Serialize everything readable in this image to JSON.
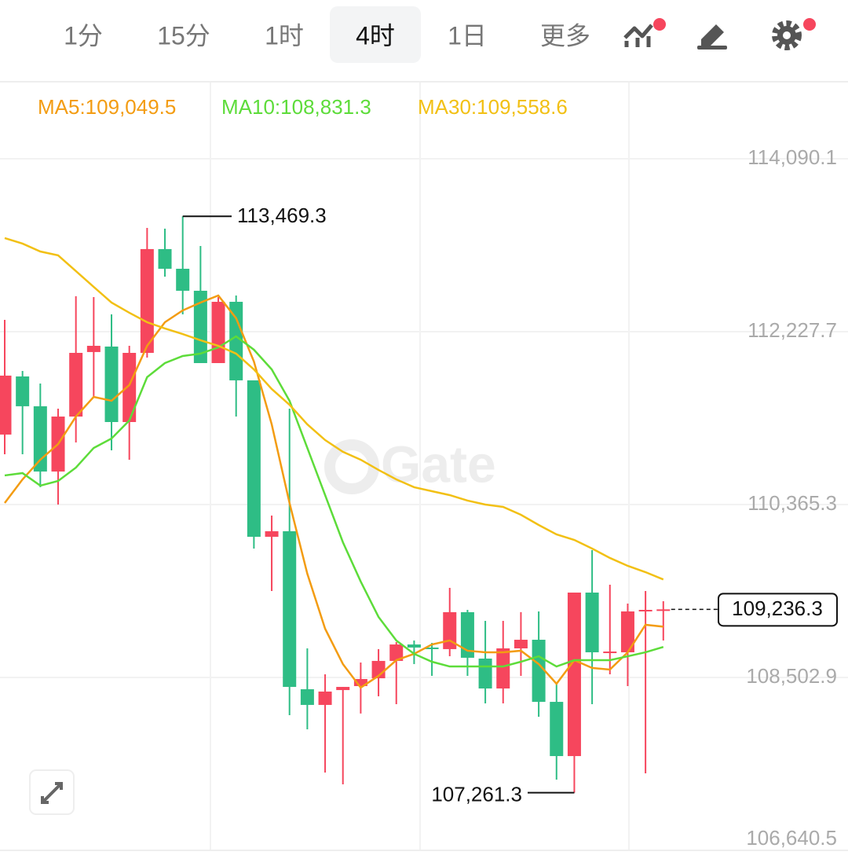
{
  "tabs": [
    {
      "label": "1分"
    },
    {
      "label": "15分"
    },
    {
      "label": "1时"
    },
    {
      "label": "4时",
      "active": true
    },
    {
      "label": "1日"
    },
    {
      "label": "更多"
    }
  ],
  "chart_data": {
    "type": "candlestick",
    "watermark": "Gate",
    "up_color": "#f6465d",
    "down_color": "#2ebd85",
    "open": [
      111119,
      111745,
      111424,
      110721,
      111313,
      112008,
      112067,
      111254,
      111999,
      113117,
      112905,
      112668,
      111889,
      112549,
      111703,
      110018,
      110078,
      108376,
      108207,
      108367,
      108410,
      108494,
      108681,
      108858,
      108825,
      108808,
      109206,
      108706,
      108384,
      108816,
      108909,
      108240,
      107656,
      109417,
      108765,
      108774,
      109222,
      109231
    ],
    "high": [
      112355,
      111804,
      111669,
      111398,
      112609,
      112600,
      112414,
      112075,
      113345,
      113337,
      113469.3,
      113150,
      112600,
      112617,
      111703,
      110247,
      111398,
      108816,
      108537,
      108401,
      108664,
      108808,
      108884,
      108901,
      108875,
      109468,
      109231,
      109112,
      109112,
      109206,
      109214,
      108435,
      109417,
      109874,
      109502,
      109299,
      109434,
      109324
    ],
    "low": [
      110907,
      110907,
      110552,
      110365,
      111034,
      111525,
      110949,
      110848,
      111948,
      112820,
      112414,
      111889,
      111889,
      111313,
      109891,
      109434,
      108097,
      107944,
      107479,
      107352,
      108114,
      108300,
      108215,
      108647,
      108520,
      108731,
      108520,
      108224,
      108224,
      108520,
      108080,
      107402,
      107261.3,
      108215,
      108537,
      108410,
      107470,
      108901
    ],
    "close": [
      111754,
      111424,
      110721,
      111313,
      111999,
      112075,
      111254,
      111999,
      113117,
      112905,
      112668,
      111889,
      112549,
      111703,
      110018,
      110078,
      108401,
      108207,
      108351,
      108401,
      108486,
      108681,
      108858,
      108825,
      108808,
      109206,
      108715,
      108384,
      108816,
      108909,
      108240,
      107656,
      109417,
      108774,
      108782,
      109214,
      109231,
      109236.3
    ],
    "series": [
      {
        "name": "MA5:109,049.5",
        "color": "#f39c12",
        "values": [
          110382,
          110636,
          110848,
          111017,
          111313,
          111525,
          111483,
          111652,
          112075,
          112329,
          112456,
          112541,
          112617,
          112372,
          111906,
          111229,
          110382,
          109620,
          109028,
          108647,
          108393,
          108520,
          108689,
          108757,
          108858,
          108901,
          108791,
          108774,
          108774,
          108791,
          108647,
          108435,
          108689,
          108605,
          108588,
          108774,
          109070,
          109049.5
        ]
      },
      {
        "name": "MA10:108,831.3",
        "color": "#5ddc3a",
        "values": [
          110679,
          110704,
          110569,
          110619,
          110763,
          110975,
          111076,
          111271,
          111737,
          111889,
          111965,
          111991,
          112058,
          112177,
          112033,
          111821,
          111483,
          110975,
          110467,
          109959,
          109536,
          109155,
          108901,
          108757,
          108672,
          108621,
          108621,
          108621,
          108621,
          108672,
          108731,
          108621,
          108689,
          108689,
          108689,
          108731,
          108774,
          108831.3
        ]
      },
      {
        "name": "MA30:109,558.6",
        "color": "#f2c014",
        "values": [
          113235,
          113176,
          113091,
          113049,
          112880,
          112710,
          112541,
          112431,
          112329,
          112262,
          112202,
          112135,
          112075,
          111991,
          111821,
          111610,
          111440,
          111229,
          111060,
          110933,
          110848,
          110738,
          110636,
          110552,
          110509,
          110467,
          110408,
          110365,
          110340,
          110255,
          110145,
          110044,
          109984,
          109891,
          109790,
          109705,
          109637,
          109558.6
        ]
      }
    ],
    "high_annotation": {
      "value": 113469.3,
      "label": "113,469.3"
    },
    "low_annotation": {
      "value": 107261.3,
      "label": "107,261.3"
    },
    "last_price": {
      "value": 109236.3,
      "label": "109,236.3"
    },
    "ylim": [
      106640.5,
      114911
    ],
    "yticks": [
      {
        "value": 106640.5,
        "label": "106,640.5"
      },
      {
        "value": 108502.9,
        "label": "108,502.9"
      },
      {
        "value": 110365.3,
        "label": "110,365.3"
      },
      {
        "value": 112227.7,
        "label": "112,227.7"
      },
      {
        "value": 114090.1,
        "label": "114,090.1"
      }
    ],
    "grid": true
  }
}
